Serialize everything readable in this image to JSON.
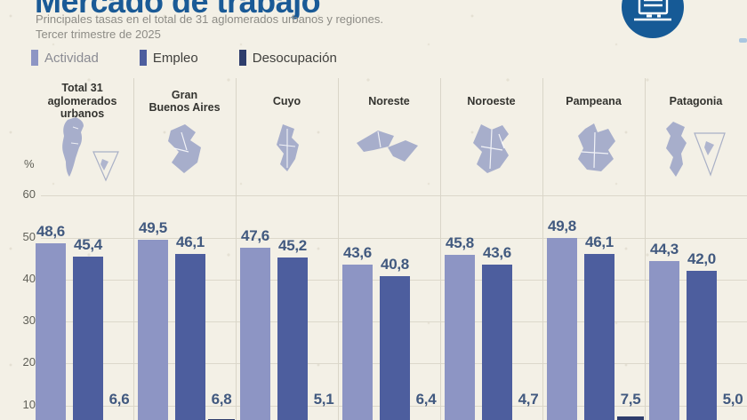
{
  "page": {
    "background_color": "#f3f0e6"
  },
  "header": {
    "title": "Mercado de trabajo",
    "title_color": "#1a5a96",
    "subtitle_line1": "Principales tasas en el total de 31 aglomerados urbanos y regiones.",
    "subtitle_line2": "Tercer trimestre de 2025",
    "badge_icon": "report-document-icon",
    "badge_color": "#165a96"
  },
  "legend": {
    "items": [
      {
        "label": "Actividad",
        "swatch_color": "#8d95c4",
        "label_color": "#8a8b93"
      },
      {
        "label": "Empleo",
        "swatch_color": "#4d5e9e",
        "label_color": "#3f3f3c"
      },
      {
        "label": "Desocupación",
        "swatch_color": "#2e3d6c",
        "label_color": "#3f3f3c"
      }
    ]
  },
  "chart_data": {
    "type": "bar",
    "title": "Mercado de trabajo",
    "subtitle": "Principales tasas en el total de 31 aglomerados urbanos y regiones. Tercer trimestre de 2025",
    "ylabel": "%",
    "yticks": [
      60,
      50,
      40,
      30,
      20,
      10
    ],
    "ylim": [
      0,
      60
    ],
    "grid": true,
    "legend_position": "top-left",
    "decimal_separator": ",",
    "categories": [
      "Total 31 aglomerados urbanos",
      "Gran Buenos Aires",
      "Cuyo",
      "Noreste",
      "Noroeste",
      "Pampeana",
      "Patagonia"
    ],
    "category_label_lines": [
      [
        "Total 31",
        "aglomerados",
        "urbanos"
      ],
      [
        "Gran",
        "Buenos Aires"
      ],
      [
        "Cuyo"
      ],
      [
        "Noreste"
      ],
      [
        "Noroeste"
      ],
      [
        "Pampeana"
      ],
      [
        "Patagonia"
      ]
    ],
    "category_maps": [
      "argentina",
      "gran-buenos-aires",
      "cuyo",
      "noreste",
      "noroeste",
      "pampeana",
      "patagonia"
    ],
    "series": [
      {
        "name": "Actividad",
        "color": "#8d95c4",
        "values": [
          48.6,
          49.5,
          47.6,
          43.6,
          45.8,
          49.8,
          44.3
        ],
        "labels": [
          "48,6",
          "49,5",
          "47,6",
          "43,6",
          "45,8",
          "49,8",
          "44,3"
        ]
      },
      {
        "name": "Empleo",
        "color": "#4d5e9e",
        "values": [
          45.4,
          46.1,
          45.2,
          40.8,
          43.6,
          46.1,
          42.0
        ],
        "labels": [
          "45,4",
          "46,1",
          "45,2",
          "40,8",
          "43,6",
          "46,1",
          "42,0"
        ]
      },
      {
        "name": "Desocupación",
        "color": "#2e3d6c",
        "values": [
          6.6,
          6.8,
          5.1,
          6.4,
          4.7,
          7.5,
          5.0
        ],
        "labels": [
          "6,6",
          "6,8",
          "5,1",
          "6,4",
          "4,7",
          "7,5",
          "5,0"
        ]
      }
    ],
    "value_label_color": "#41597f",
    "map_fill_color": "#a7aecb"
  }
}
